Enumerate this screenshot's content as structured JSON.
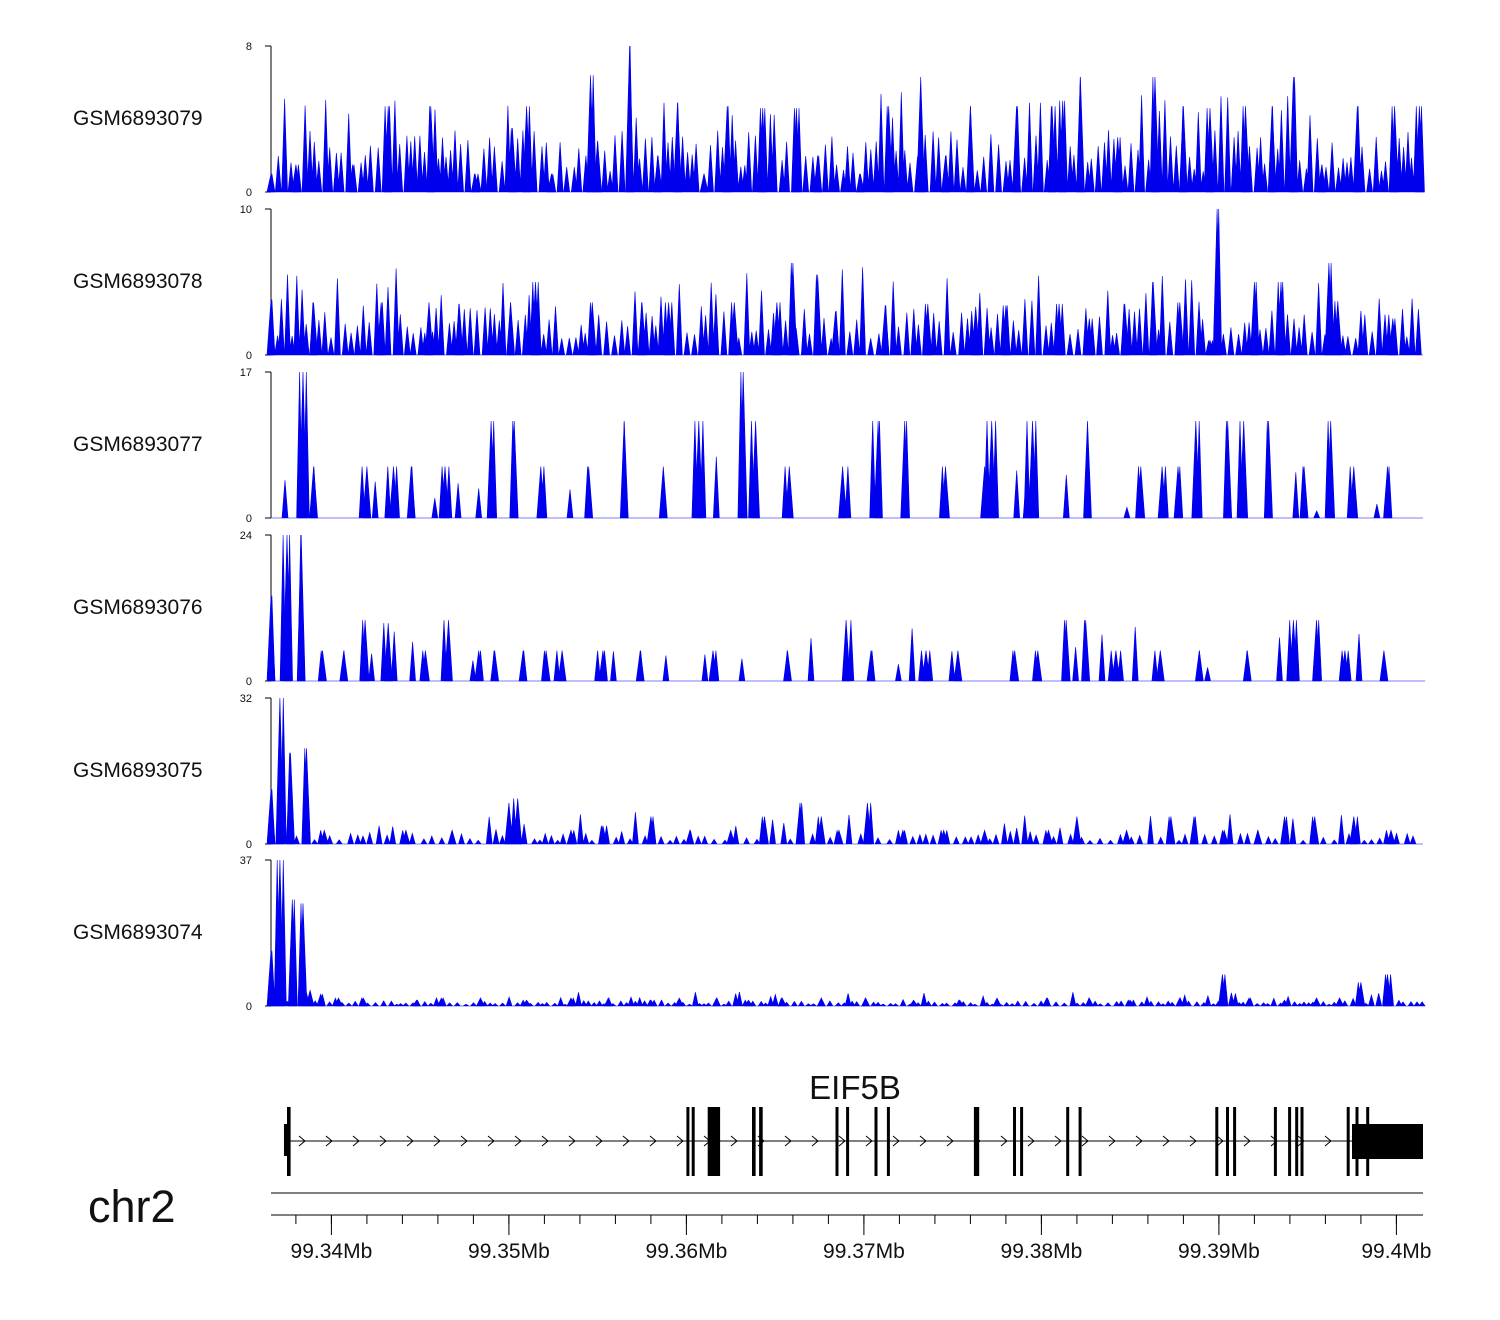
{
  "chart_data": {
    "type": "area",
    "chromosome": "chr2",
    "x_range_mb": [
      99.3366,
      99.4015
    ],
    "x_ticks_mb": [
      99.334,
      99.336,
      99.338,
      99.34,
      99.342,
      99.344,
      99.346,
      99.348,
      99.35,
      99.352,
      99.354,
      99.356,
      99.358,
      99.36,
      99.362,
      99.364,
      99.366,
      99.368,
      99.37,
      99.372,
      99.374,
      99.376,
      99.378,
      99.38,
      99.382,
      99.384,
      99.386,
      99.388,
      99.39,
      99.392,
      99.394,
      99.396,
      99.398,
      99.4
    ],
    "x_tick_labels": [
      {
        "mb": 99.34,
        "label": "99.34Mb"
      },
      {
        "mb": 99.35,
        "label": "99.35Mb"
      },
      {
        "mb": 99.36,
        "label": "99.36Mb"
      },
      {
        "mb": 99.37,
        "label": "99.37Mb"
      },
      {
        "mb": 99.38,
        "label": "99.38Mb"
      },
      {
        "mb": 99.39,
        "label": "99.39Mb"
      },
      {
        "mb": 99.4,
        "label": "99.4Mb"
      }
    ],
    "fill_color": "#0000ee",
    "tracks": [
      {
        "name": "GSM6893079",
        "ymax": 8,
        "ymax_label": "8",
        "ymin_label": "0",
        "peaks": [
          [
            99.3366,
            1
          ],
          [
            99.338,
            1.5
          ],
          [
            99.3412,
            1.5
          ],
          [
            99.3432,
            4.7
          ],
          [
            99.3456,
            4.7
          ],
          [
            99.3481,
            1
          ],
          [
            99.3502,
            3.5
          ],
          [
            99.351,
            4.7
          ],
          [
            99.3524,
            1
          ],
          [
            99.3546,
            6.4
          ],
          [
            99.355,
            2.8
          ],
          [
            99.3568,
            8
          ],
          [
            99.3584,
            2
          ],
          [
            99.3595,
            4.9
          ],
          [
            99.361,
            1
          ],
          [
            99.3623,
            4.7
          ],
          [
            99.3643,
            4.6
          ],
          [
            99.3662,
            4.6
          ],
          [
            99.3674,
            2
          ],
          [
            99.3698,
            1
          ],
          [
            99.3714,
            4.7
          ],
          [
            99.3732,
            6.3
          ],
          [
            99.3746,
            2
          ],
          [
            99.376,
            4.7
          ],
          [
            99.3786,
            4.7
          ],
          [
            99.3806,
            4.7
          ],
          [
            99.3812,
            5
          ],
          [
            99.3822,
            6.3
          ],
          [
            99.3843,
            3
          ],
          [
            99.3864,
            6.3
          ],
          [
            99.388,
            4.7
          ],
          [
            99.3895,
            4.6
          ],
          [
            99.3915,
            4.7
          ],
          [
            99.393,
            4.7
          ],
          [
            99.3942,
            6.3
          ],
          [
            99.3958,
            1.5
          ],
          [
            99.3978,
            4.7
          ],
          [
            99.3999,
            4.7
          ],
          [
            99.4013,
            4.7
          ]
        ]
      },
      {
        "name": "GSM6893078",
        "ymax": 10,
        "ymax_label": "10",
        "ymin_label": "0",
        "peaks": [
          [
            99.3366,
            3.8
          ],
          [
            99.339,
            3.6
          ],
          [
            99.3428,
            3.6
          ],
          [
            99.3455,
            3.6
          ],
          [
            99.3472,
            3.5
          ],
          [
            99.3501,
            3.6
          ],
          [
            99.3515,
            5
          ],
          [
            99.3547,
            3.6
          ],
          [
            99.3575,
            3.6
          ],
          [
            99.359,
            3.6
          ],
          [
            99.3627,
            3.6
          ],
          [
            99.3651,
            3.6
          ],
          [
            99.366,
            6.3
          ],
          [
            99.3674,
            5.5
          ],
          [
            99.3684,
            3
          ],
          [
            99.3712,
            3.4
          ],
          [
            99.3736,
            3.5
          ],
          [
            99.3763,
            3.3
          ],
          [
            99.378,
            3.4
          ],
          [
            99.381,
            3.5
          ],
          [
            99.3827,
            2.5
          ],
          [
            99.3847,
            3.5
          ],
          [
            99.3863,
            5
          ],
          [
            99.3878,
            3.6
          ],
          [
            99.3895,
            1
          ],
          [
            99.3899,
            10
          ],
          [
            99.392,
            5
          ],
          [
            99.3935,
            5
          ],
          [
            99.3962,
            6.3
          ],
          [
            99.3967,
            3.7
          ],
          [
            99.3998,
            2.5
          ]
        ]
      },
      {
        "name": "GSM6893077",
        "ymax": 17,
        "ymax_label": "17",
        "ymin_label": "0",
        "peaks": [
          [
            99.3384,
            17
          ],
          [
            99.339,
            6
          ],
          [
            99.342,
            6
          ],
          [
            99.3435,
            6
          ],
          [
            99.3445,
            6
          ],
          [
            99.3464,
            6
          ],
          [
            99.349,
            11.3
          ],
          [
            99.3503,
            11.3
          ],
          [
            99.3518,
            6
          ],
          [
            99.3545,
            6
          ],
          [
            99.3565,
            11.3
          ],
          [
            99.3587,
            6
          ],
          [
            99.3607,
            11.3
          ],
          [
            99.3632,
            17
          ],
          [
            99.3639,
            11.3
          ],
          [
            99.3658,
            6
          ],
          [
            99.3688,
            6
          ],
          [
            99.3708,
            11.3
          ],
          [
            99.3723,
            11.3
          ],
          [
            99.3746,
            6
          ],
          [
            99.3768,
            6
          ],
          [
            99.3772,
            11.3
          ],
          [
            99.3792,
            6
          ],
          [
            99.3795,
            11.3
          ],
          [
            99.3826,
            11.3
          ],
          [
            99.3856,
            6
          ],
          [
            99.3868,
            6
          ],
          [
            99.3877,
            6
          ],
          [
            99.3887,
            11.3
          ],
          [
            99.3905,
            11.3
          ],
          [
            99.3914,
            11.3
          ],
          [
            99.3928,
            11.3
          ],
          [
            99.3948,
            6
          ],
          [
            99.3963,
            11.3
          ],
          [
            99.3976,
            6
          ],
          [
            99.3995,
            6
          ]
        ]
      },
      {
        "name": "GSM6893076",
        "ymax": 24,
        "ymax_label": "24",
        "ymin_label": "0",
        "peaks": [
          [
            99.3366,
            14
          ],
          [
            99.3375,
            24
          ],
          [
            99.3383,
            24
          ],
          [
            99.3395,
            5
          ],
          [
            99.3407,
            5
          ],
          [
            99.3419,
            10
          ],
          [
            99.3432,
            9.5
          ],
          [
            99.3453,
            5
          ],
          [
            99.3466,
            10
          ],
          [
            99.3483,
            5
          ],
          [
            99.3492,
            5
          ],
          [
            99.3508,
            5
          ],
          [
            99.3521,
            5
          ],
          [
            99.353,
            5
          ],
          [
            99.3553,
            5
          ],
          [
            99.3574,
            5
          ],
          [
            99.3615,
            5
          ],
          [
            99.3657,
            5
          ],
          [
            99.369,
            10
          ],
          [
            99.3704,
            5
          ],
          [
            99.3735,
            5
          ],
          [
            99.3753,
            5
          ],
          [
            99.3785,
            5
          ],
          [
            99.3798,
            5
          ],
          [
            99.3814,
            10
          ],
          [
            99.3825,
            10
          ],
          [
            99.3842,
            5
          ],
          [
            99.3867,
            5
          ],
          [
            99.3889,
            5
          ],
          [
            99.3916,
            5
          ],
          [
            99.3942,
            10
          ],
          [
            99.3955,
            10
          ],
          [
            99.3971,
            5
          ],
          [
            99.3993,
            5
          ]
        ]
      },
      {
        "name": "GSM6893075",
        "ymax": 32,
        "ymax_label": "32",
        "ymin_label": "0",
        "peaks": [
          [
            99.3366,
            12
          ],
          [
            99.3371,
            32
          ],
          [
            99.3377,
            20
          ],
          [
            99.3386,
            21
          ],
          [
            99.3396,
            3
          ],
          [
            99.3442,
            3
          ],
          [
            99.3468,
            3
          ],
          [
            99.35,
            9
          ],
          [
            99.3505,
            10
          ],
          [
            99.3535,
            3
          ],
          [
            99.3553,
            4
          ],
          [
            99.358,
            6
          ],
          [
            99.3602,
            3
          ],
          [
            99.3625,
            3
          ],
          [
            99.3644,
            6
          ],
          [
            99.3664,
            9
          ],
          [
            99.3676,
            6
          ],
          [
            99.3686,
            3
          ],
          [
            99.3702,
            9
          ],
          [
            99.3722,
            3
          ],
          [
            99.3745,
            3
          ],
          [
            99.3768,
            3
          ],
          [
            99.3804,
            3
          ],
          [
            99.382,
            6
          ],
          [
            99.3848,
            3
          ],
          [
            99.3873,
            6
          ],
          [
            99.3886,
            6
          ],
          [
            99.3903,
            3
          ],
          [
            99.3922,
            3
          ],
          [
            99.3937,
            6
          ],
          [
            99.3954,
            6
          ],
          [
            99.3976,
            6
          ],
          [
            99.3997,
            3
          ]
        ]
      },
      {
        "name": "GSM6893074",
        "ymax": 37,
        "ymax_label": "37",
        "ymin_label": "0",
        "peaks": [
          [
            99.3366,
            14
          ],
          [
            99.3371,
            37
          ],
          [
            99.3378,
            27
          ],
          [
            99.3384,
            26
          ],
          [
            99.3388,
            4
          ],
          [
            99.3394,
            3
          ],
          [
            99.3404,
            2
          ],
          [
            99.3418,
            2
          ],
          [
            99.3448,
            1.5
          ],
          [
            99.3462,
            2
          ],
          [
            99.3484,
            2
          ],
          [
            99.351,
            1.5
          ],
          [
            99.3535,
            2
          ],
          [
            99.3556,
            2
          ],
          [
            99.358,
            1.5
          ],
          [
            99.3596,
            2
          ],
          [
            99.3617,
            2
          ],
          [
            99.3635,
            1.5
          ],
          [
            99.3654,
            2
          ],
          [
            99.3676,
            2
          ],
          [
            99.3701,
            2
          ],
          [
            99.3728,
            1.5
          ],
          [
            99.3754,
            1.5
          ],
          [
            99.3775,
            2
          ],
          [
            99.3803,
            2
          ],
          [
            99.3827,
            2
          ],
          [
            99.385,
            1.5
          ],
          [
            99.3878,
            2
          ],
          [
            99.3902,
            8
          ],
          [
            99.3917,
            2
          ],
          [
            99.3937,
            1.5
          ],
          [
            99.3955,
            2
          ],
          [
            99.3968,
            2
          ],
          [
            99.398,
            6
          ],
          [
            99.3995,
            8
          ]
        ]
      }
    ],
    "gene_track": {
      "gene_name": "EIF5B",
      "strand": "+",
      "start_mb": 99.3375,
      "end_mb": 99.4015,
      "exons_mb": [
        [
          99.3375,
          99.3377
        ],
        [
          99.36,
          99.3601
        ],
        [
          99.3603,
          99.3604
        ],
        [
          99.3612,
          99.3619
        ],
        [
          99.3637,
          99.3639
        ],
        [
          99.3641,
          99.3643
        ],
        [
          99.3684,
          99.3685
        ],
        [
          99.369,
          99.3691
        ],
        [
          99.3706,
          99.3707
        ],
        [
          99.3713,
          99.3714
        ],
        [
          99.3762,
          99.3765
        ],
        [
          99.3784,
          99.3785
        ],
        [
          99.3788,
          99.3789
        ],
        [
          99.3814,
          99.3815
        ],
        [
          99.3821,
          99.3822
        ],
        [
          99.3898,
          99.3899
        ],
        [
          99.3904,
          99.3905
        ],
        [
          99.3908,
          99.3909
        ],
        [
          99.3931,
          99.3932
        ],
        [
          99.3939,
          99.394
        ],
        [
          99.3943,
          99.3944
        ],
        [
          99.3946,
          99.3947
        ],
        [
          99.3972,
          99.3973
        ],
        [
          99.3975,
          99.4015
        ]
      ]
    }
  }
}
